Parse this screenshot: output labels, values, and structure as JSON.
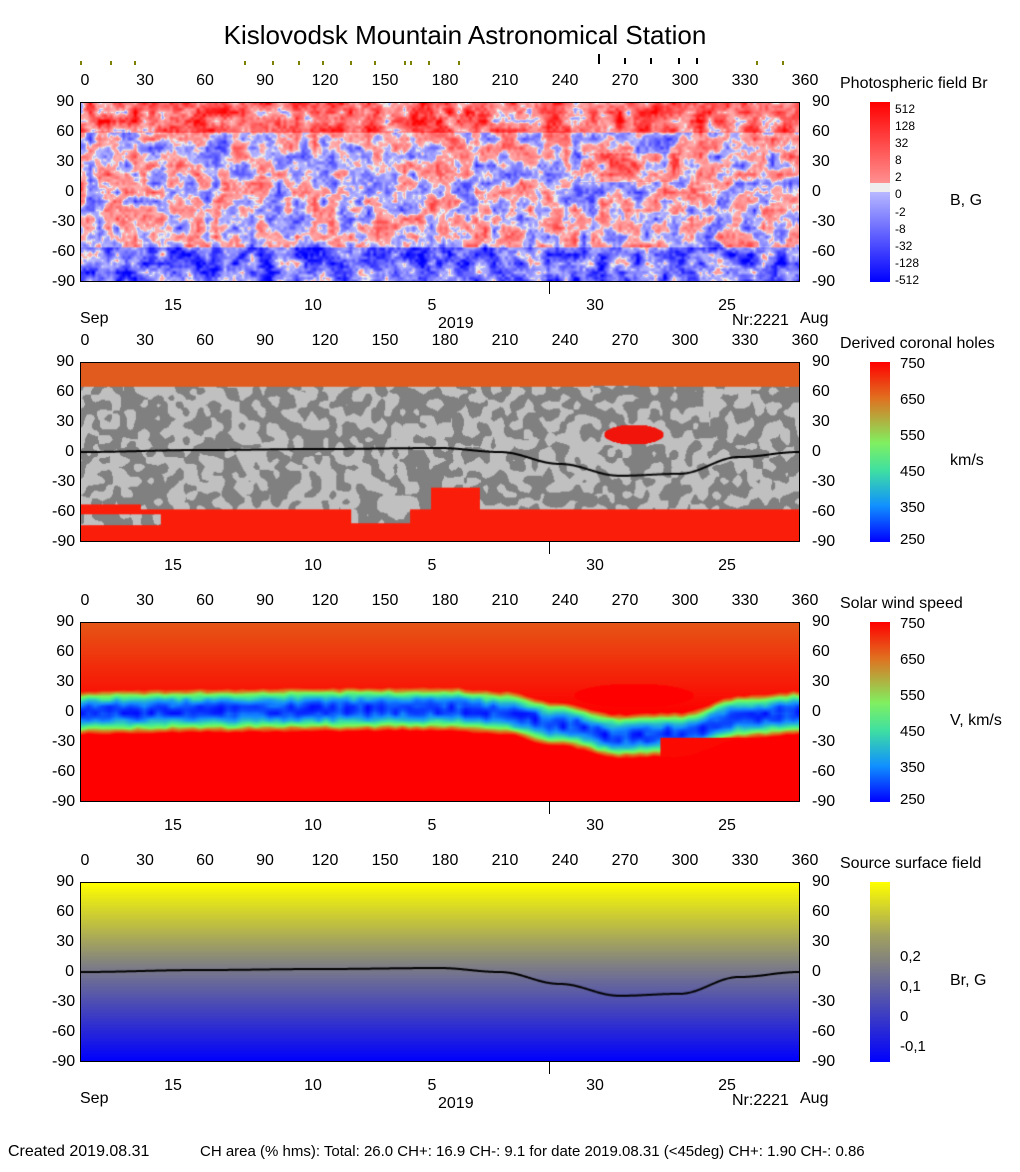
{
  "title": "Kislovodsk Mountain Astronomical Station",
  "chart_data": [
    {
      "type": "heatmap",
      "title": "Photospheric field Br",
      "unit": "B, G",
      "xlim": [
        0,
        360
      ],
      "ylim": [
        -90,
        90
      ],
      "x_ticks": [
        "0",
        "30",
        "60",
        "90",
        "120",
        "150",
        "180",
        "210",
        "240",
        "270",
        "300",
        "330",
        "360"
      ],
      "y_ticks": [
        "90",
        "60",
        "30",
        "0",
        "-30",
        "-60",
        "-90"
      ],
      "colorbar_ticks": [
        "512",
        "128",
        "32",
        "8",
        "2",
        "0",
        "-2",
        "-8",
        "-32",
        "-128",
        "-512"
      ],
      "colors": {
        "positive": "#ff0000",
        "negative": "#0000ff",
        "zero": "#eeeeee"
      },
      "date_ticks": [
        "15",
        "10",
        "5",
        "30",
        "25"
      ],
      "month_left": "Sep",
      "year": "2019",
      "rotation": "Nr:2221",
      "month_right": "Aug"
    },
    {
      "type": "heatmap",
      "title": "Derived coronal holes",
      "unit": "km/s",
      "xlim": [
        0,
        360
      ],
      "ylim": [
        -90,
        90
      ],
      "colorbar_ticks": [
        "750",
        "650",
        "550",
        "450",
        "350",
        "250"
      ],
      "neutral_line": [
        [
          0,
          0
        ],
        [
          60,
          2
        ],
        [
          120,
          3
        ],
        [
          180,
          4
        ],
        [
          210,
          0
        ],
        [
          240,
          -12
        ],
        [
          270,
          -24
        ],
        [
          300,
          -22
        ],
        [
          330,
          -5
        ],
        [
          360,
          0
        ]
      ],
      "date_ticks": [
        "15",
        "10",
        "5",
        "30",
        "25"
      ]
    },
    {
      "type": "heatmap",
      "title": "Solar wind speed",
      "unit": "V, km/s",
      "xlim": [
        0,
        360
      ],
      "ylim": [
        -90,
        90
      ],
      "colorbar_ticks": [
        "750",
        "650",
        "550",
        "450",
        "350",
        "250"
      ],
      "date_ticks": [
        "15",
        "10",
        "5",
        "30",
        "25"
      ]
    },
    {
      "type": "heatmap",
      "title": "Source surface field",
      "unit": "Br, G",
      "xlim": [
        0,
        360
      ],
      "ylim": [
        -90,
        90
      ],
      "colorbar_ticks": [
        "0,2",
        "0,1",
        "0",
        "-0,1"
      ],
      "neutral_line": [
        [
          0,
          0
        ],
        [
          60,
          2
        ],
        [
          120,
          3
        ],
        [
          180,
          4
        ],
        [
          210,
          0
        ],
        [
          240,
          -12
        ],
        [
          270,
          -24
        ],
        [
          300,
          -22
        ],
        [
          330,
          -5
        ],
        [
          360,
          0
        ]
      ],
      "date_ticks": [
        "15",
        "10",
        "5",
        "30",
        "25"
      ],
      "month_left": "Sep",
      "year": "2019",
      "rotation": "Nr:2221",
      "month_right": "Aug"
    }
  ],
  "markers": {
    "olive_longitudes": [
      0,
      15,
      27,
      82,
      96,
      109,
      121,
      135,
      147,
      162,
      165,
      174,
      189,
      338,
      351
    ],
    "black_longitudes": [
      259,
      272,
      285,
      299,
      308
    ],
    "olive": "#808000",
    "black": "#000000"
  },
  "footer": {
    "created": "Created  2019.08.31",
    "stats": "CH area (% hms): Total: 26.0 CH+: 16.9   CH-: 9.1 for date 2019.08.31 (<45deg) CH+: 1.90    CH-: 0.86"
  }
}
